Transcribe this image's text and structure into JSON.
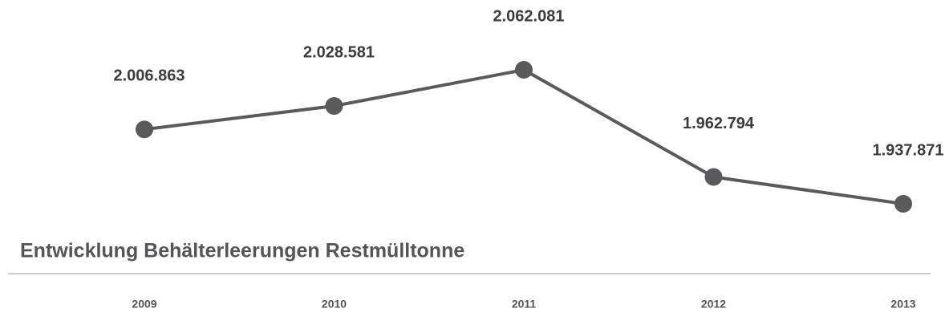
{
  "chart_data": {
    "type": "line",
    "title": "Entwicklung Behälterleerungen Restmülltonne",
    "categories": [
      "2009",
      "2010",
      "2011",
      "2012",
      "2013"
    ],
    "values": [
      2006863,
      2028581,
      2062081,
      1962794,
      1937871
    ],
    "value_labels": [
      "2.006.863",
      "2.028.581",
      "2.062.081",
      "1.962.794",
      "1.937.871"
    ],
    "color": "#5a5a5e"
  }
}
